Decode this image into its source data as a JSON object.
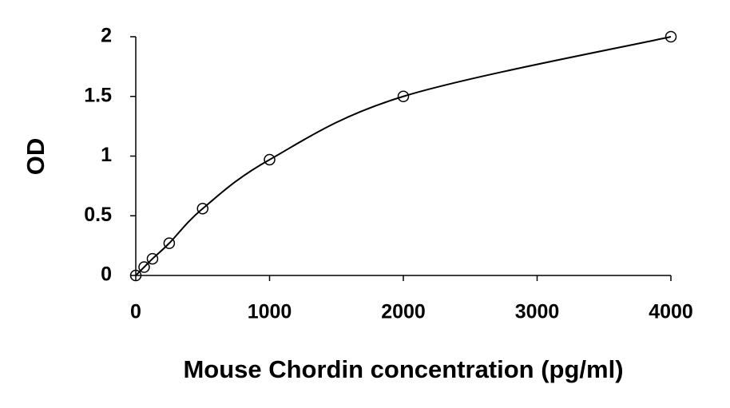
{
  "chart_data": {
    "type": "scatter",
    "x_label": "Mouse Chordin concentration (pg/ml)",
    "y_label": "OD",
    "x": [
      0,
      62.5,
      125,
      250,
      500,
      1000,
      2000,
      4000
    ],
    "values": [
      0,
      0.07,
      0.14,
      0.27,
      0.56,
      0.97,
      1.5,
      2
    ],
    "color": "#000000",
    "smooth_line": true,
    "xlim": [
      0,
      4000
    ],
    "xticks": [
      0,
      1000,
      2000,
      3000,
      4000
    ],
    "ylim": [
      0,
      2
    ],
    "yticks": [
      0,
      0.5,
      1,
      1.5,
      2
    ],
    "grid": false
  }
}
